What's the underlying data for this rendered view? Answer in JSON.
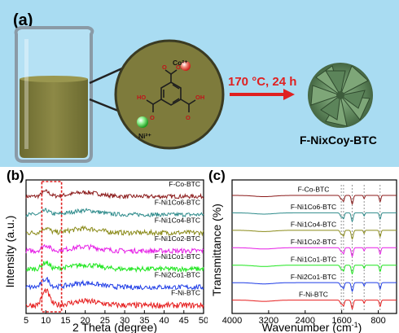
{
  "figure": {
    "panel_a": {
      "label": "(a)",
      "ion_co": "Co²⁺",
      "ion_ni": "Ni²⁺",
      "reaction_condition": "170 °C, 24 h",
      "product": "F-NixCoy-BTC",
      "molecule_group_top": "OH",
      "molecule_group_right": "OH",
      "molecule_group_left": "HO",
      "colors": {
        "background": "#a9dcf2",
        "solution": "#7d7a3e",
        "arrow": "#e02020",
        "co_ion": "#e64a3a",
        "ni_ion": "#3fcf3f",
        "flower": "#5f8a5f"
      }
    },
    "panel_b": {
      "label": "(b)",
      "ylabel": "Intensity (a.u.)",
      "xlabel": "2 Theta (degree)",
      "xticks": [
        "5",
        "10",
        "15",
        "20",
        "25",
        "30",
        "35",
        "40",
        "45",
        "50"
      ],
      "xlim": [
        5,
        50
      ],
      "highlight_box": [
        9,
        14
      ]
    },
    "panel_c": {
      "label": "(c)",
      "ylabel": "Transmittance (%)",
      "xlabel": "Wavenumber (cm",
      "xlabel_sup": "-1",
      "xlabel_end": ")",
      "xticks": [
        "4000",
        "3200",
        "2400",
        "1600",
        "800"
      ],
      "xlim": [
        4000,
        400
      ],
      "dashed_lines": [
        1610,
        1560,
        1370,
        1110,
        760
      ]
    }
  },
  "chart_data": [
    {
      "type": "line",
      "xlabel": "2 Theta (degree)",
      "ylabel": "Intensity (a.u.)",
      "xlim": [
        5,
        50
      ],
      "series": [
        {
          "name": "F-Co-BTC",
          "color": "#8b1a1a",
          "offset": 7,
          "peak": 0.3,
          "noise": 0.25
        },
        {
          "name": "F-Ni1Co6-BTC",
          "color": "#2e8b8b",
          "offset": 6,
          "peak": 0.25,
          "noise": 0.25
        },
        {
          "name": "F-Ni1Co4-BTC",
          "color": "#8b8b1a",
          "offset": 5,
          "peak": 0.3,
          "noise": 0.3
        },
        {
          "name": "F-Ni1Co2-BTC",
          "color": "#e61ee6",
          "offset": 4,
          "peak": 0.35,
          "noise": 0.3
        },
        {
          "name": "F-Ni1Co1-BTC",
          "color": "#1ee61e",
          "offset": 3,
          "peak": 0.4,
          "noise": 0.3
        },
        {
          "name": "F-Ni2Co1-BTC",
          "color": "#1e3ce6",
          "offset": 2,
          "peak": 0.5,
          "noise": 0.3
        },
        {
          "name": "F-Ni-BTC",
          "color": "#e61e1e",
          "offset": 1,
          "peak": 0.9,
          "noise": 0.35
        }
      ]
    },
    {
      "type": "line",
      "xlabel": "Wavenumber (cm-1)",
      "ylabel": "Transmittance (%)",
      "xlim": [
        4000,
        400
      ],
      "series": [
        {
          "name": "F-Co-BTC",
          "color": "#8b1a1a",
          "offset": 7
        },
        {
          "name": "F-Ni1Co6-BTC",
          "color": "#2e8b8b",
          "offset": 6
        },
        {
          "name": "F-Ni1Co4-BTC",
          "color": "#8b8b1a",
          "offset": 5
        },
        {
          "name": "F-Ni1Co2-BTC",
          "color": "#e61ee6",
          "offset": 4
        },
        {
          "name": "F-Ni1Co1-BTC",
          "color": "#1ee61e",
          "offset": 3
        },
        {
          "name": "F-Ni2Co1-BTC",
          "color": "#1e3ce6",
          "offset": 2
        },
        {
          "name": "F-Ni-BTC",
          "color": "#e61e1e",
          "offset": 1
        }
      ]
    }
  ]
}
